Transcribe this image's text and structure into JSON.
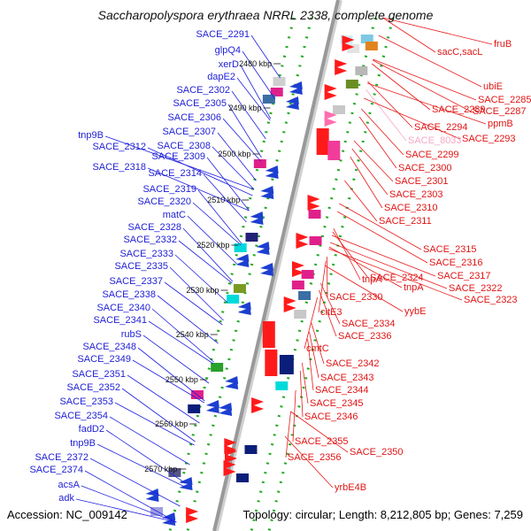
{
  "title": "Saccharopolyspora erythraea NRRL 2338, complete genome",
  "footer": {
    "accession": "Accession: NC_009142",
    "summary": "Topology: circular; Length: 8,212,805 bp; Genes: 7,259"
  },
  "colors": {
    "backbone": "#999999",
    "dots": "#22aa22",
    "left_labels": "#1f1fd6",
    "right_labels": "#e01515",
    "highlight_label": "#f6a9c7",
    "leader_left": "#2020e0",
    "leader_right": "#e81818"
  },
  "ruler": [
    {
      "text": "2480 kbp"
    },
    {
      "text": "2490 kbp"
    },
    {
      "text": "2500 kbp"
    },
    {
      "text": "2510 kbp"
    },
    {
      "text": "2520 kbp"
    },
    {
      "text": "2530 kbp"
    },
    {
      "text": "2540 kbp"
    },
    {
      "text": "2550 kbp"
    },
    {
      "text": "2560 kbp"
    },
    {
      "text": "2570 kbp"
    }
  ],
  "left_genes": [
    "SACE_2291",
    "glpQ4",
    "xerD",
    "dapE2",
    "SACE_2302",
    "SACE_2305",
    "SACE_2306",
    "SACE_2307",
    "tnp9B",
    "SACE_2308",
    "SACE_2312",
    "SACE_2309",
    "SACE_2318",
    "SACE_2314",
    "SACE_2319",
    "SACE_2320",
    "matC",
    "SACE_2328",
    "SACE_2332",
    "SACE_2333",
    "SACE_2335",
    "SACE_2337",
    "SACE_2338",
    "SACE_2340",
    "SACE_2341",
    "rubS",
    "SACE_2348",
    "SACE_2349",
    "SACE_2351",
    "SACE_2352",
    "SACE_2353",
    "SACE_2354",
    "fadD2",
    "tnp9B",
    "SACE_2372",
    "SACE_2374",
    "acsA",
    "adk"
  ],
  "right_genes": [
    "fruB",
    "sacC,sacL",
    "ubiE",
    "SACE_2285",
    "SACE_2289",
    "SACE_2287",
    "ppmB",
    "SACE_2294",
    "SACE_8033",
    "SACE_2293",
    "SACE_2299",
    "SACE_2300",
    "SACE_2301",
    "SACE_2303",
    "SACE_2310",
    "SACE_2311",
    "SACE_2315",
    "SACE_2316",
    "SACE_2317",
    "SACE_2324",
    "tnpA",
    "tnpA",
    "SACE_2322",
    "SACE_2323",
    "SACE_2330",
    "yybE",
    "citE3",
    "SACE_2334",
    "SACE_2336",
    "cmtC",
    "SACE_2342",
    "SACE_2343",
    "SACE_2344",
    "SACE_2345",
    "SACE_2346",
    "SACE_2355",
    "SACE_2350",
    "SACE_2356",
    "yrbE4B"
  ]
}
